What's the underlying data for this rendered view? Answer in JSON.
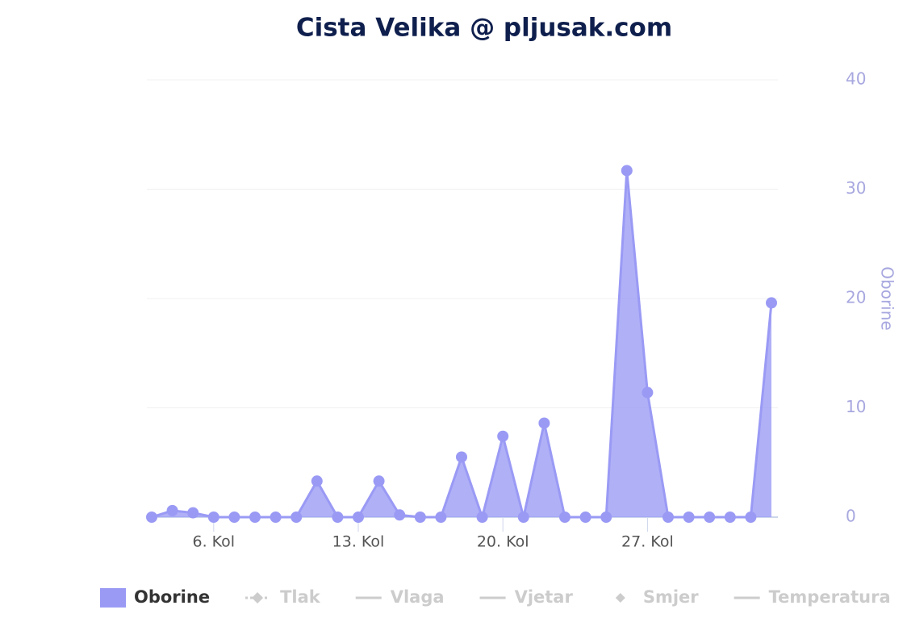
{
  "chart_data": {
    "type": "area",
    "title": "Cista Velika @ pljusak.com",
    "categories": [
      null,
      null,
      null,
      "6. Kol",
      null,
      null,
      null,
      null,
      null,
      null,
      "13. Kol",
      null,
      null,
      null,
      null,
      null,
      null,
      "20. Kol",
      null,
      null,
      null,
      null,
      null,
      null,
      "27. Kol",
      null,
      null,
      null,
      null,
      null,
      null
    ],
    "series": [
      {
        "name": "Oborine",
        "color": "#9a9af5",
        "axis": "y2",
        "values": [
          0,
          0.6,
          0.4,
          0,
          0,
          0,
          0,
          0,
          3.3,
          0,
          0,
          3.3,
          0.2,
          0,
          0,
          5.5,
          0,
          7.4,
          0,
          8.6,
          0,
          0,
          0,
          31.7,
          11.4,
          0,
          0,
          0,
          0,
          0,
          19.6
        ]
      }
    ],
    "hidden_series": [
      {
        "name": "Tlak",
        "symbol": "dash-diamond"
      },
      {
        "name": "Vlaga",
        "symbol": "line"
      },
      {
        "name": "Vjetar",
        "symbol": "line"
      },
      {
        "name": "Smjer",
        "symbol": "diamond"
      },
      {
        "name": "Temperatura",
        "symbol": "line"
      }
    ],
    "y2_label": "Oborine",
    "y2lim": [
      0,
      40
    ],
    "y2ticks": [
      0,
      10,
      20,
      30,
      40
    ],
    "grid": true
  }
}
